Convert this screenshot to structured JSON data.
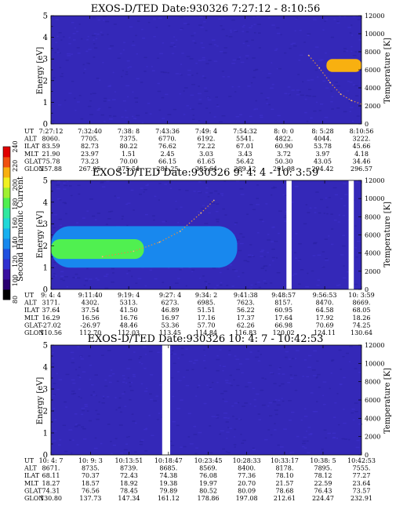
{
  "colorbar": {
    "label": "Second Harmonic Current",
    "ticks": [
      "80",
      "100",
      "120",
      "140",
      "160",
      "180",
      "200",
      "220",
      "240"
    ],
    "colors": [
      "#000000",
      "#2a0070",
      "#3a10a0",
      "#3030d0",
      "#2050e0",
      "#1888ee",
      "#18b0f0",
      "#20d8d8",
      "#30e8a0",
      "#50f050",
      "#a0f030",
      "#f0f020",
      "#f8b010",
      "#f05010",
      "#e00000"
    ]
  },
  "panels": [
    {
      "title": "EXOS-D/TED    Date:930326  7:27:12 - 8:10:56",
      "ylabel": "Energy [eV]",
      "ylabel_right": "Temperature [K]",
      "yticks": [
        "0",
        "1",
        "2",
        "3",
        "4",
        "5"
      ],
      "yticks_right": [
        "0",
        "2000",
        "4000",
        "6000",
        "8000",
        "10000",
        "12000"
      ],
      "table": {
        "row_labels": [
          "UT",
          "ALT",
          "ILAT",
          "MLT",
          "GLAT",
          "GLON"
        ],
        "columns": [
          [
            "7:27:12",
            "8060.",
            "83.59",
            "21.90",
            "75.78",
            "257.88"
          ],
          [
            "7:32:40",
            "7705.",
            "82.73",
            "23.97",
            "73.23",
            "267.95"
          ],
          [
            "7:38: 8",
            "7375.",
            "80.22",
            "1.51",
            "70.00",
            "275.54"
          ],
          [
            "7:43:36",
            "6770.",
            "76.62",
            "2.45",
            "66.15",
            "281.25"
          ],
          [
            "7:49: 4",
            "6192.",
            "72.22",
            "3.03",
            "61.65",
            "285.64"
          ],
          [
            "7:54:32",
            "5541.",
            "67.01",
            "3.43",
            "56.42",
            "289.12"
          ],
          [
            "8: 0: 0",
            "4822.",
            "60.90",
            "3.72",
            "50.30",
            "291.98"
          ],
          [
            "8: 5:28",
            "4044.",
            "53.78",
            "3.97",
            "43.05",
            "294.42"
          ],
          [
            "8:10:56",
            "3222.",
            "45.66",
            "4.18",
            "34.46",
            "296.57"
          ]
        ]
      }
    },
    {
      "title": "EXOS-D/TED    Date:930326  9: 4: 4 - 10: 3:59",
      "ylabel": "Energy [eV]",
      "ylabel_right": "Temperature [K]",
      "yticks": [
        "0",
        "1",
        "2",
        "3",
        "4",
        "5"
      ],
      "yticks_right": [
        "0",
        "2000",
        "4000",
        "6000",
        "8000",
        "10000",
        "12000"
      ],
      "table": {
        "row_labels": [
          "UT",
          "ALT",
          "ILAT",
          "MLT",
          "GLAT",
          "GLON"
        ],
        "columns": [
          [
            "9: 4: 4",
            "3171.",
            "37.64",
            "16.29",
            "-27.02",
            "110.56"
          ],
          [
            "9:11:40",
            "4302.",
            "37.54",
            "16.56",
            "-26.97",
            "112.70"
          ],
          [
            "9:19: 4",
            "5313.",
            "41.50",
            "16.76",
            "48.46",
            "112.03"
          ],
          [
            "9:27: 4",
            "6273.",
            "46.89",
            "16.97",
            "53.36",
            "113.45"
          ],
          [
            "9:34: 2",
            "6985.",
            "51.51",
            "17.16",
            "57.70",
            "114.84"
          ],
          [
            "9:41:38",
            "7623.",
            "56.22",
            "17.37",
            "62.26",
            "116.83"
          ],
          [
            "9:48:57",
            "8157.",
            "60.95",
            "17.64",
            "66.98",
            "120.02"
          ],
          [
            "9:56:53",
            "8470.",
            "64.58",
            "17.92",
            "70.69",
            "124.11"
          ],
          [
            "10: 3:59",
            "8669.",
            "68.05",
            "18.26",
            "74.25",
            "130.64"
          ]
        ]
      }
    },
    {
      "title": "EXOS-D/TED    Date:930326  10: 4: 7 - 10:42:53",
      "ylabel": "Energy [eV]",
      "ylabel_right": "Temperature [K]",
      "yticks": [
        "0",
        "1",
        "2",
        "3",
        "4",
        "5"
      ],
      "yticks_right": [
        "0",
        "2000",
        "4000",
        "6000",
        "8000",
        "10000",
        "12000"
      ],
      "table": {
        "row_labels": [
          "UT",
          "ALT",
          "ILAT",
          "MLT",
          "GLAT",
          "GLON"
        ],
        "columns": [
          [
            "10: 4: 7",
            "8671.",
            "68.11",
            "18.27",
            "74.31",
            "130.80"
          ],
          [
            "10: 9: 3",
            "8735.",
            "70.37",
            "18.57",
            "76.56",
            "137.73"
          ],
          [
            "10:13:51",
            "8739.",
            "72.43",
            "18.92",
            "78.45",
            "147.34"
          ],
          [
            "10:18:47",
            "8685.",
            "74.38",
            "19.38",
            "79.89",
            "161.12"
          ],
          [
            "10:23:45",
            "8569.",
            "76.08",
            "19.97",
            "80.52",
            "178.86"
          ],
          [
            "10:28:33",
            "8400.",
            "77.36",
            "20.70",
            "80.09",
            "197.08"
          ],
          [
            "10:33:17",
            "8178.",
            "78.10",
            "21.57",
            "78.68",
            "212.61"
          ],
          [
            "10:38: 5",
            "7895.",
            "78.12",
            "22.59",
            "76.43",
            "224.47"
          ],
          [
            "10:42:53",
            "7555.",
            "77.27",
            "23.64",
            "73.57",
            "232.91"
          ]
        ]
      }
    }
  ],
  "chart_data": [
    {
      "type": "heatmap",
      "title": "EXOS-D/TED    Date:930326  7:27:12 - 8:10:56",
      "ylabel": "Energy [eV]",
      "ylabel_right": "Temperature [K]",
      "ylim": [
        0,
        5
      ],
      "ylim_right": [
        0,
        12000
      ],
      "colorbar_range": [
        80,
        240
      ],
      "blobs": [
        {
          "t_start": "8: 6:00",
          "t_end": "8:10:56",
          "energy_low": 2.4,
          "energy_high": 3.0,
          "level": 220
        }
      ],
      "data_gaps": [],
      "temperature_trace": [
        {
          "t": "8: 3:30",
          "T": 7600
        },
        {
          "t": "8: 5:00",
          "T": 6200
        },
        {
          "t": "8: 6:30",
          "T": 4600
        },
        {
          "t": "8: 8:00",
          "T": 3300
        },
        {
          "t": "8: 9:30",
          "T": 2600
        },
        {
          "t": "8:10:56",
          "T": 2200
        }
      ]
    },
    {
      "type": "heatmap",
      "title": "EXOS-D/TED    Date:930326  9: 4: 4 - 10: 3:59",
      "ylabel": "Energy [eV]",
      "ylabel_right": "Temperature [K]",
      "ylim": [
        0,
        5
      ],
      "ylim_right": [
        0,
        12000
      ],
      "colorbar_range": [
        80,
        240
      ],
      "blobs": [
        {
          "t_start": "9: 4: 4",
          "t_end": "9:40:00",
          "energy_low": 1.0,
          "energy_high": 2.9,
          "level": 140
        },
        {
          "t_start": "9: 4: 4",
          "t_end": "9:22:00",
          "energy_low": 1.4,
          "energy_high": 2.3,
          "level": 180
        }
      ],
      "data_gaps": [
        {
          "t_start": "9:49:30",
          "t_end": "9:50:30"
        },
        {
          "t_start": "10: 1:30",
          "t_end": "10: 2:30"
        }
      ],
      "temperature_trace": [
        {
          "t": "9:14:00",
          "T": 3600
        },
        {
          "t": "9:20:00",
          "T": 4200
        },
        {
          "t": "9:25:00",
          "T": 5200
        },
        {
          "t": "9:29:00",
          "T": 6400
        },
        {
          "t": "9:33:00",
          "T": 8400
        },
        {
          "t": "9:35:30",
          "T": 9800
        }
      ]
    },
    {
      "type": "heatmap",
      "title": "EXOS-D/TED    Date:930326  10: 4: 7 - 10:42:53",
      "ylabel": "Energy [eV]",
      "ylabel_right": "Temperature [K]",
      "ylim": [
        0,
        5
      ],
      "ylim_right": [
        0,
        12000
      ],
      "colorbar_range": [
        80,
        240
      ],
      "blobs": [],
      "data_gaps": [
        {
          "t_start": "10:18:00",
          "t_end": "10:19:00"
        }
      ],
      "temperature_trace": []
    }
  ]
}
